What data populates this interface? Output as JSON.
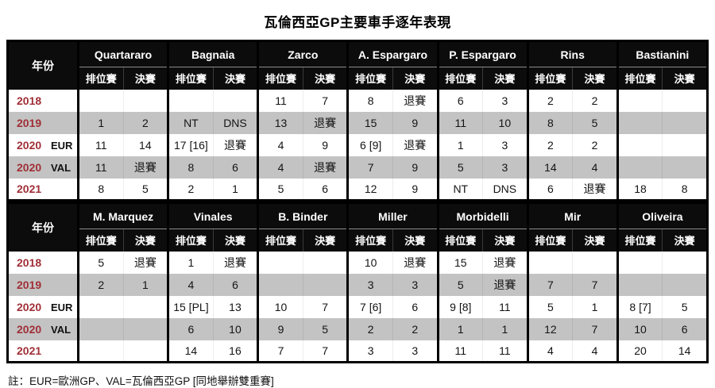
{
  "title": "瓦倫西亞GP主要車手逐年表現",
  "note": "註：EUR=歐洲GP、VAL=瓦倫西亞GP [同地舉辦雙重賽]",
  "headers": {
    "year": "年份",
    "qualifying": "排位賽",
    "race": "決賽"
  },
  "colors": {
    "header_bg": "#0c0c0c",
    "stripe_gray": "#c3c3c3",
    "year_red": "#a03038",
    "border_black": "#000000"
  },
  "chart_data": [
    {
      "type": "table",
      "riders": [
        "Quartararo",
        "Bagnaia",
        "Zarco",
        "A. Espargaro",
        "P. Espargaro",
        "Rins",
        "Bastianini"
      ],
      "sub_columns": [
        "排位賽",
        "決賽"
      ],
      "rows": [
        {
          "year": "2018",
          "sub": "",
          "stripe": false,
          "cells": [
            "",
            "",
            "",
            "",
            "11",
            "7",
            "8",
            "退賽",
            "6",
            "3",
            "2",
            "2",
            "",
            ""
          ]
        },
        {
          "year": "2019",
          "sub": "",
          "stripe": true,
          "cells": [
            "1",
            "2",
            "NT",
            "DNS",
            "13",
            "退賽",
            "15",
            "9",
            "11",
            "10",
            "8",
            "5",
            "",
            ""
          ]
        },
        {
          "year": "2020",
          "sub": "EUR",
          "stripe": false,
          "cells": [
            "11",
            "14",
            "17 [16]",
            "退賽",
            "4",
            "9",
            "6 [9]",
            "退賽",
            "1",
            "3",
            "2",
            "2",
            "",
            ""
          ]
        },
        {
          "year": "2020",
          "sub": "VAL",
          "stripe": true,
          "cells": [
            "11",
            "退賽",
            "8",
            "6",
            "4",
            "退賽",
            "7",
            "9",
            "5",
            "3",
            "14",
            "4",
            "",
            ""
          ]
        },
        {
          "year": "2021",
          "sub": "",
          "stripe": false,
          "cells": [
            "8",
            "5",
            "2",
            "1",
            "5",
            "6",
            "12",
            "9",
            "NT",
            "DNS",
            "6",
            "退賽",
            "18",
            "8"
          ]
        }
      ]
    },
    {
      "type": "table",
      "riders": [
        "M. Marquez",
        "Vinales",
        "B. Binder",
        "Miller",
        "Morbidelli",
        "Mir",
        "Oliveira"
      ],
      "sub_columns": [
        "排位賽",
        "決賽"
      ],
      "rows": [
        {
          "year": "2018",
          "sub": "",
          "stripe": false,
          "cells": [
            "5",
            "退賽",
            "1",
            "退賽",
            "",
            "",
            "10",
            "退賽",
            "15",
            "退賽",
            "",
            "",
            "",
            ""
          ]
        },
        {
          "year": "2019",
          "sub": "",
          "stripe": true,
          "cells": [
            "2",
            "1",
            "4",
            "6",
            "",
            "",
            "3",
            "3",
            "5",
            "退賽",
            "7",
            "7",
            "",
            ""
          ]
        },
        {
          "year": "2020",
          "sub": "EUR",
          "stripe": false,
          "cells": [
            "",
            "",
            "15 [PL]",
            "13",
            "10",
            "7",
            "7 [6]",
            "6",
            "9 [8]",
            "11",
            "5",
            "1",
            "8 [7]",
            "5"
          ]
        },
        {
          "year": "2020",
          "sub": "VAL",
          "stripe": true,
          "cells": [
            "",
            "",
            "6",
            "10",
            "9",
            "5",
            "2",
            "2",
            "1",
            "1",
            "12",
            "7",
            "10",
            "6"
          ]
        },
        {
          "year": "2021",
          "sub": "",
          "stripe": false,
          "cells": [
            "",
            "",
            "14",
            "16",
            "7",
            "7",
            "3",
            "3",
            "11",
            "11",
            "4",
            "4",
            "20",
            "14"
          ]
        }
      ]
    }
  ]
}
